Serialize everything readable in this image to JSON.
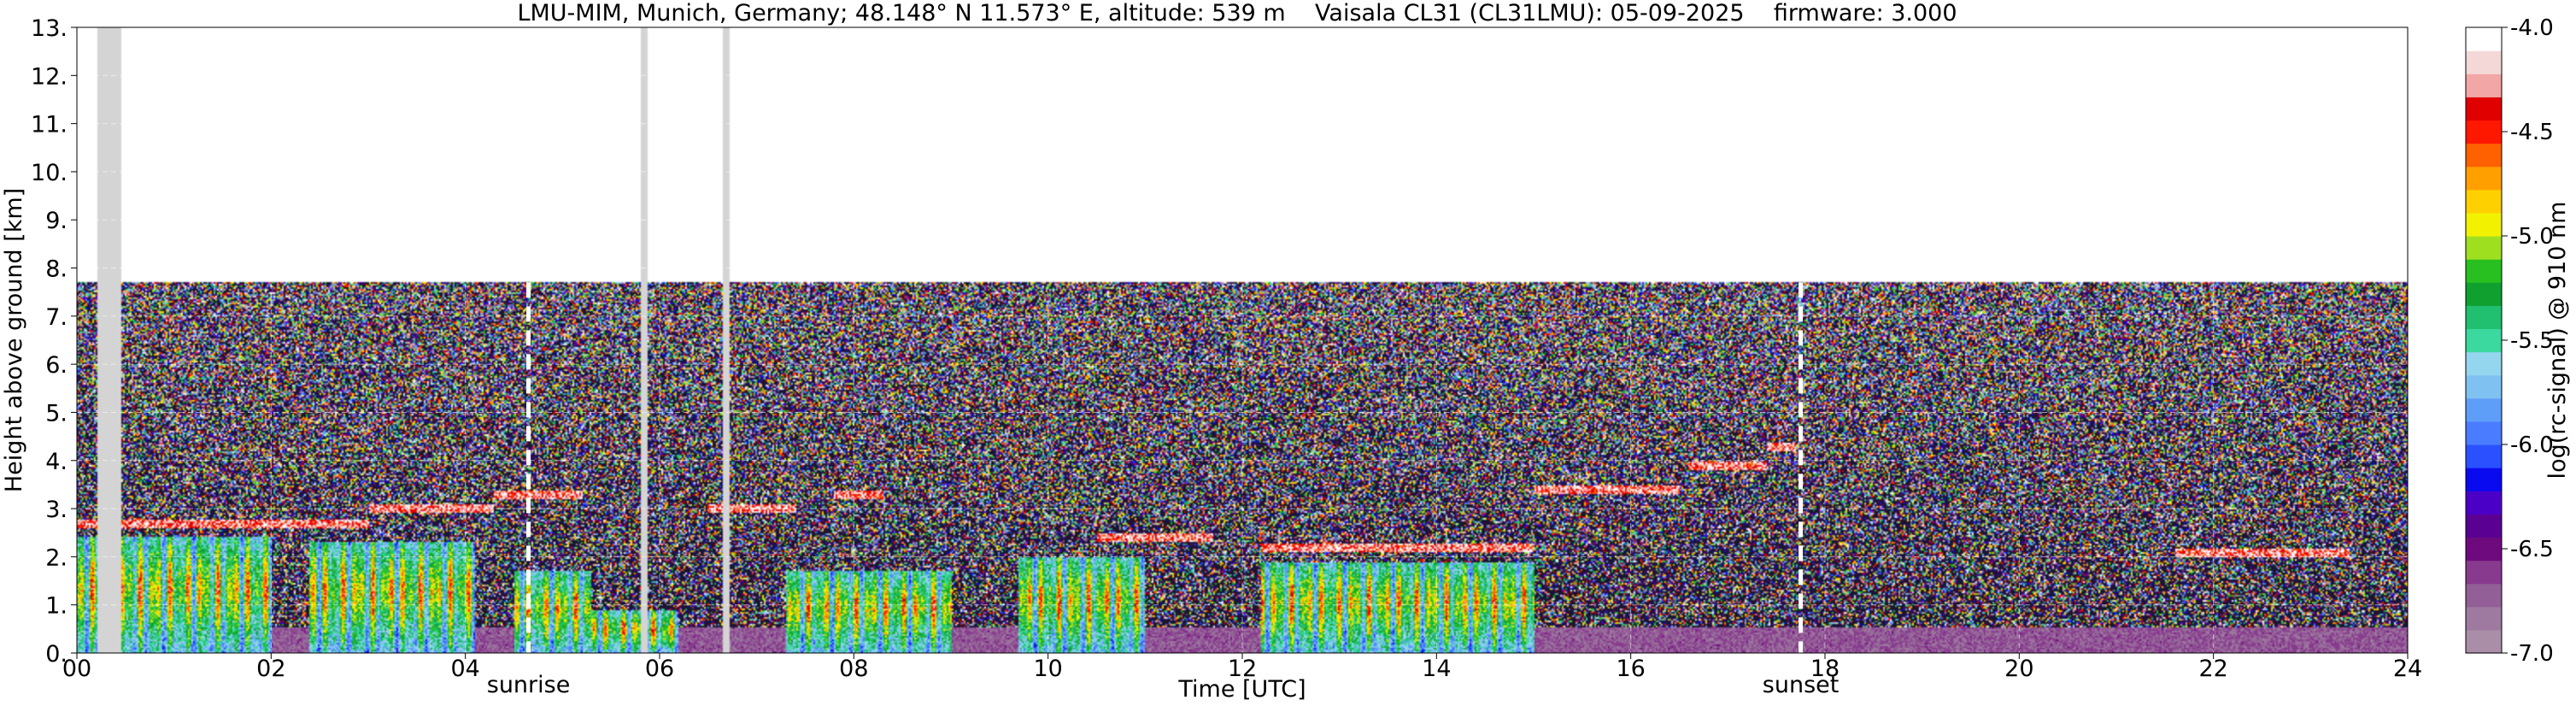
{
  "chart_data": {
    "type": "heatmap",
    "title": "LMU-MIM, Munich, Germany; 48.148° N 11.573° E, altitude: 539 m    Vaisala CL31 (CL31LMU): 05-09-2025    firmware: 3.000",
    "xlabel": "Time [UTC]",
    "ylabel": "Height above ground [km]",
    "colorbar_label": "log(rc-signal) @ 910 nm",
    "xlim": [
      0,
      24
    ],
    "ylim": [
      0,
      13
    ],
    "x_ticks": [
      0,
      2,
      4,
      6,
      8,
      10,
      12,
      14,
      16,
      18,
      20,
      22,
      24
    ],
    "x_tick_labels": [
      "00",
      "02",
      "04",
      "06",
      "08",
      "10",
      "12",
      "14",
      "16",
      "18",
      "20",
      "22",
      "24"
    ],
    "y_ticks": [
      0,
      1,
      2,
      3,
      4,
      5,
      6,
      7,
      8,
      9,
      10,
      11,
      12,
      13
    ],
    "y_tick_labels": [
      "0.",
      "1.",
      "2.",
      "3.",
      "4.",
      "5.",
      "6.",
      "7.",
      "8.",
      "9.",
      "10.",
      "11.",
      "12.",
      "13."
    ],
    "colorbar_range": [
      -7.0,
      -4.0
    ],
    "colorbar_ticks": [
      -7.0,
      -6.5,
      -6.0,
      -5.5,
      -5.0,
      -4.5,
      -4.0
    ],
    "colorbar_tick_labels": [
      "-7.0",
      "-6.5",
      "-6.0",
      "-5.5",
      "-5.0",
      "-4.5",
      "-4.0"
    ],
    "grid": true,
    "measurement_top_km": 7.7,
    "events": [
      {
        "label": "sunrise",
        "time": 4.65
      },
      {
        "label": "sunset",
        "time": 17.75
      }
    ],
    "missing_data_times": [
      0.25,
      0.3,
      0.35,
      0.42,
      5.85,
      6.68
    ],
    "cloud_layers": [
      {
        "start": 0.0,
        "end": 3.0,
        "base_km": 2.6
      },
      {
        "start": 3.0,
        "end": 4.3,
        "base_km": 2.9
      },
      {
        "start": 4.3,
        "end": 5.2,
        "base_km": 3.2
      },
      {
        "start": 6.5,
        "end": 7.4,
        "base_km": 2.9
      },
      {
        "start": 7.8,
        "end": 8.3,
        "base_km": 3.2
      },
      {
        "start": 10.5,
        "end": 11.7,
        "base_km": 2.3
      },
      {
        "start": 12.2,
        "end": 15.0,
        "base_km": 2.1
      },
      {
        "start": 15.0,
        "end": 16.5,
        "base_km": 3.3
      },
      {
        "start": 16.6,
        "end": 17.4,
        "base_km": 3.8
      },
      {
        "start": 17.4,
        "end": 17.7,
        "base_km": 4.2
      },
      {
        "start": 21.6,
        "end": 23.4,
        "base_km": 2.0
      }
    ],
    "boundary_layer_top_km": [
      {
        "start": 0.0,
        "end": 2.0,
        "top_km": 2.4
      },
      {
        "start": 2.4,
        "end": 4.1,
        "top_km": 2.3
      },
      {
        "start": 4.5,
        "end": 5.3,
        "top_km": 1.7
      },
      {
        "start": 5.3,
        "end": 6.2,
        "top_km": 0.9
      },
      {
        "start": 7.3,
        "end": 9.0,
        "top_km": 1.7
      },
      {
        "start": 9.7,
        "end": 11.0,
        "top_km": 2.0
      },
      {
        "start": 12.2,
        "end": 15.0,
        "top_km": 1.9
      }
    ]
  },
  "colors": {
    "colormap": [
      "#aa8ea8",
      "#9e7aa0",
      "#925f96",
      "#883a8e",
      "#6f0a7e",
      "#5a0092",
      "#4b00c8",
      "#0a0af0",
      "#2a50ff",
      "#4a7cff",
      "#5f9ef8",
      "#7fc2f2",
      "#93d6ee",
      "#3bd8a0",
      "#20c070",
      "#10a030",
      "#28c020",
      "#9ee020",
      "#f2f200",
      "#ffd000",
      "#ffa000",
      "#ff6000",
      "#ff1800",
      "#e00000",
      "#f2a6a6",
      "#f4d8d8",
      "#ffffff"
    ],
    "no_signal": "#1c1434",
    "missing": "#d4d4d4",
    "marker_line": "#ffffff"
  }
}
